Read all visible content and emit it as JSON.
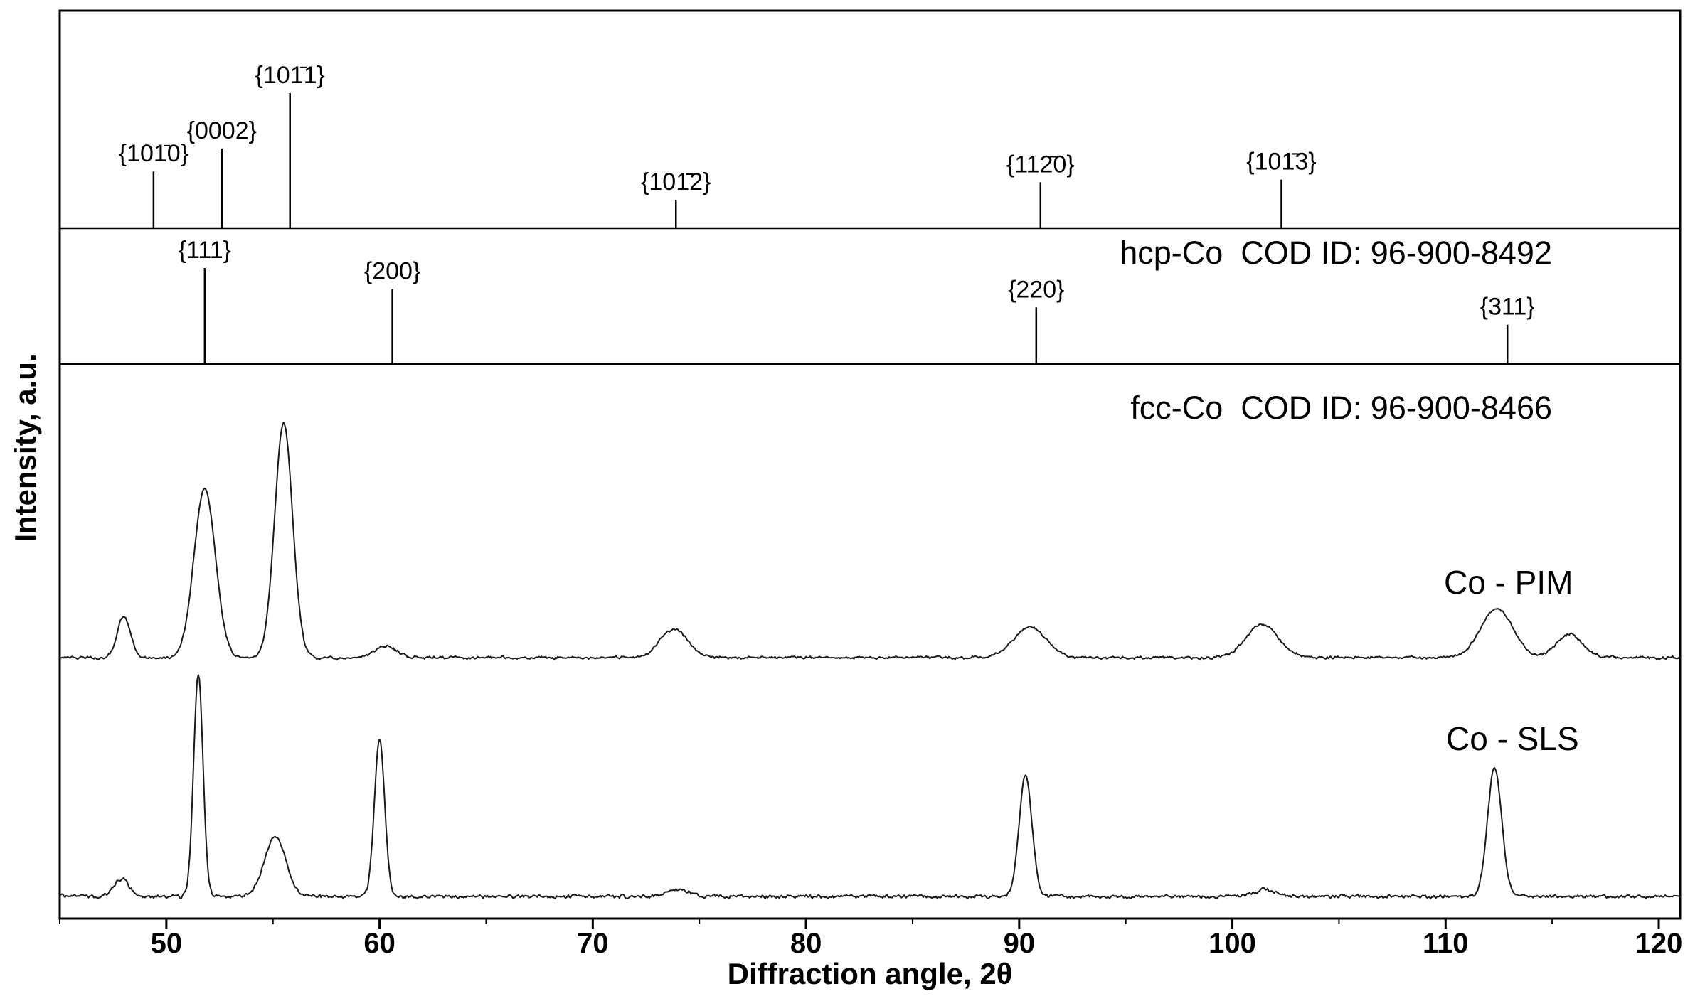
{
  "figure": {
    "background": "#ffffff",
    "frame_color": "#000000",
    "trace_color": "#1a1a1a"
  },
  "chart_data": {
    "type": "line",
    "title": "",
    "xlabel": "Diffraction angle, 2θ",
    "ylabel": "Intensity, a.u.",
    "xlim": [
      45,
      121
    ],
    "x_ticks": [
      50,
      60,
      70,
      80,
      90,
      100,
      110,
      120
    ],
    "x_minor_tick_step": 5,
    "y_ticks": [],
    "grid": false,
    "references": [
      {
        "name": "hcp-Co",
        "cod_label": "hcp-Co  COD ID: 96-900-8492",
        "peaks": [
          {
            "hkl": "{101̄0}",
            "two_theta": 49.4,
            "rel_intensity": 0.42
          },
          {
            "hkl": "{0002}",
            "two_theta": 52.6,
            "rel_intensity": 0.59
          },
          {
            "hkl": "{101̄1}",
            "two_theta": 55.8,
            "rel_intensity": 1.0
          },
          {
            "hkl": "{101̄2}",
            "two_theta": 73.9,
            "rel_intensity": 0.21
          },
          {
            "hkl": "{112̄0}",
            "two_theta": 91.0,
            "rel_intensity": 0.34
          },
          {
            "hkl": "{101̄3}",
            "two_theta": 102.3,
            "rel_intensity": 0.36
          }
        ]
      },
      {
        "name": "fcc-Co",
        "cod_label": "fcc-Co  COD ID: 96-900-8466",
        "peaks": [
          {
            "hkl": "{111}",
            "two_theta": 51.8,
            "rel_intensity": 1.0
          },
          {
            "hkl": "{200}",
            "two_theta": 60.6,
            "rel_intensity": 0.78
          },
          {
            "hkl": "{220}",
            "two_theta": 90.8,
            "rel_intensity": 0.59
          },
          {
            "hkl": "{311}",
            "two_theta": 112.9,
            "rel_intensity": 0.41
          }
        ]
      }
    ],
    "series": [
      {
        "name": "Co - PIM",
        "peak_profile": "broad",
        "peaks": [
          {
            "two_theta": 48.0,
            "rel_intensity": 18,
            "sigma": 0.3
          },
          {
            "two_theta": 51.8,
            "rel_intensity": 72,
            "sigma": 0.5
          },
          {
            "two_theta": 55.5,
            "rel_intensity": 100,
            "sigma": 0.42
          },
          {
            "two_theta": 60.3,
            "rel_intensity": 5,
            "sigma": 0.5
          },
          {
            "two_theta": 73.8,
            "rel_intensity": 12,
            "sigma": 0.65
          },
          {
            "two_theta": 90.5,
            "rel_intensity": 13,
            "sigma": 0.75
          },
          {
            "two_theta": 101.4,
            "rel_intensity": 14,
            "sigma": 0.75
          },
          {
            "two_theta": 112.4,
            "rel_intensity": 21,
            "sigma": 0.75
          },
          {
            "two_theta": 115.8,
            "rel_intensity": 10,
            "sigma": 0.6
          }
        ]
      },
      {
        "name": "Co - SLS",
        "peak_profile": "sharp",
        "peaks": [
          {
            "two_theta": 47.9,
            "rel_intensity": 8,
            "sigma": 0.35
          },
          {
            "two_theta": 51.5,
            "rel_intensity": 100,
            "sigma": 0.22
          },
          {
            "two_theta": 55.1,
            "rel_intensity": 27,
            "sigma": 0.5
          },
          {
            "two_theta": 60.0,
            "rel_intensity": 71,
            "sigma": 0.24
          },
          {
            "two_theta": 74.0,
            "rel_intensity": 3,
            "sigma": 0.5
          },
          {
            "two_theta": 90.3,
            "rel_intensity": 55,
            "sigma": 0.3
          },
          {
            "two_theta": 101.5,
            "rel_intensity": 3,
            "sigma": 0.5
          },
          {
            "two_theta": 112.3,
            "rel_intensity": 58,
            "sigma": 0.33
          }
        ]
      }
    ]
  }
}
